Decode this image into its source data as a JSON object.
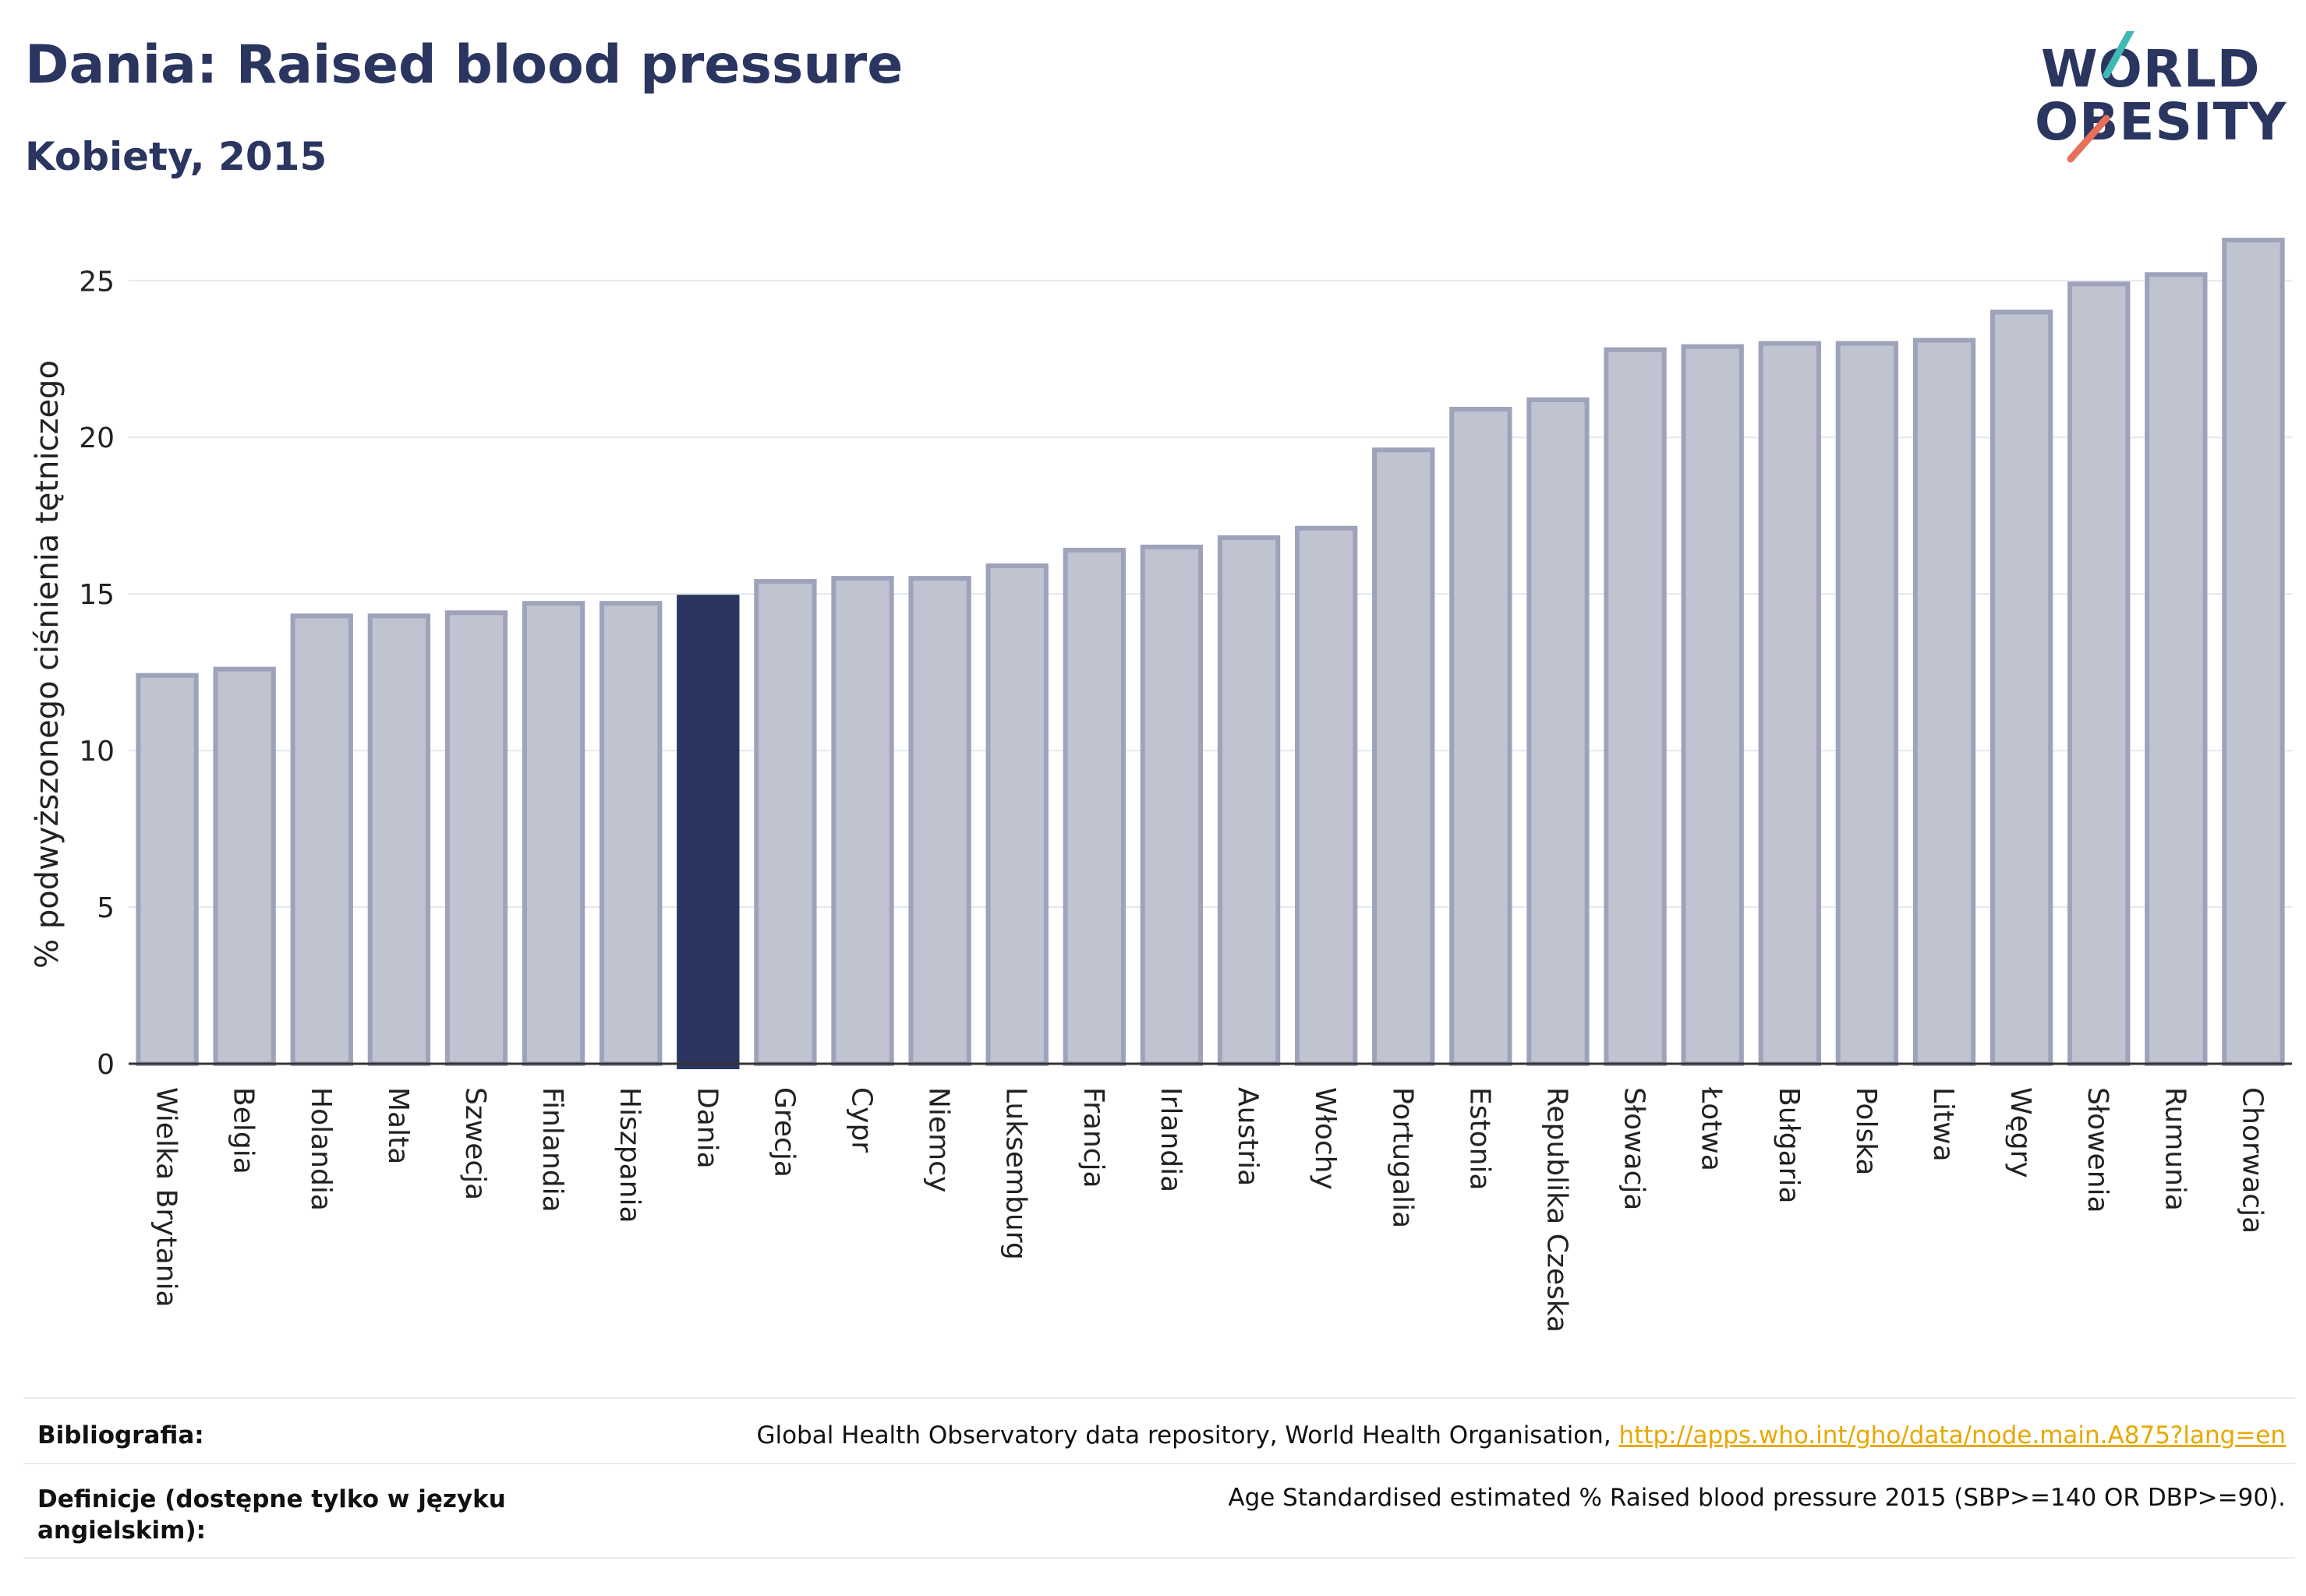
{
  "header": {
    "title": "Dania: Raised blood pressure",
    "subtitle": "Kobiety, 2015"
  },
  "logo": {
    "line1": "WORLD",
    "line2": "OBESITY",
    "colors": {
      "text": "#2a3560",
      "slash_teal": "#3fb8b6",
      "slash_red": "#e8705a"
    }
  },
  "chart_data": {
    "type": "bar",
    "ylabel": "% podwyższonego ciśnienia tętniczego",
    "ylim": [
      0,
      26.5
    ],
    "yticks": [
      0,
      5,
      10,
      15,
      20,
      25
    ],
    "grid": true,
    "highlight": "Dania",
    "colors": {
      "bar": "#c0c3d0",
      "bar_edge": "#9ea3bb",
      "highlight": "#2a3560"
    },
    "categories": [
      "Wielka Brytania",
      "Belgia",
      "Holandia",
      "Malta",
      "Szwecja",
      "Finlandia",
      "Hiszpania",
      "Dania",
      "Grecja",
      "Cypr",
      "Niemcy",
      "Luksemburg",
      "Francja",
      "Irlandia",
      "Austria",
      "Włochy",
      "Portugalia",
      "Estonia",
      "Republika Czeska",
      "Słowacja",
      "Łotwa",
      "Bułgaria",
      "Polska",
      "Litwa",
      "Węgry",
      "Słowenia",
      "Rumunia",
      "Chorwacja"
    ],
    "values": [
      12.4,
      12.6,
      14.3,
      14.3,
      14.4,
      14.7,
      14.7,
      14.9,
      15.4,
      15.5,
      15.5,
      15.9,
      16.4,
      16.5,
      16.8,
      17.1,
      19.6,
      20.9,
      21.2,
      22.8,
      22.9,
      23.0,
      23.0,
      23.1,
      24.0,
      24.9,
      25.2,
      26.3
    ]
  },
  "footer": {
    "bibliography_label": "Bibliografia:",
    "bibliography_text": "Global Health Observatory data repository, World Health Organisation, ",
    "bibliography_link": "http://apps.who.int/gho/data/node.main.A875?lang=en",
    "definition_label": "Definicje (dostępne tylko w języku angielskim):",
    "definition_text": "Age Standardised estimated % Raised blood pressure 2015 (SBP>=140 OR DBP>=90)."
  }
}
